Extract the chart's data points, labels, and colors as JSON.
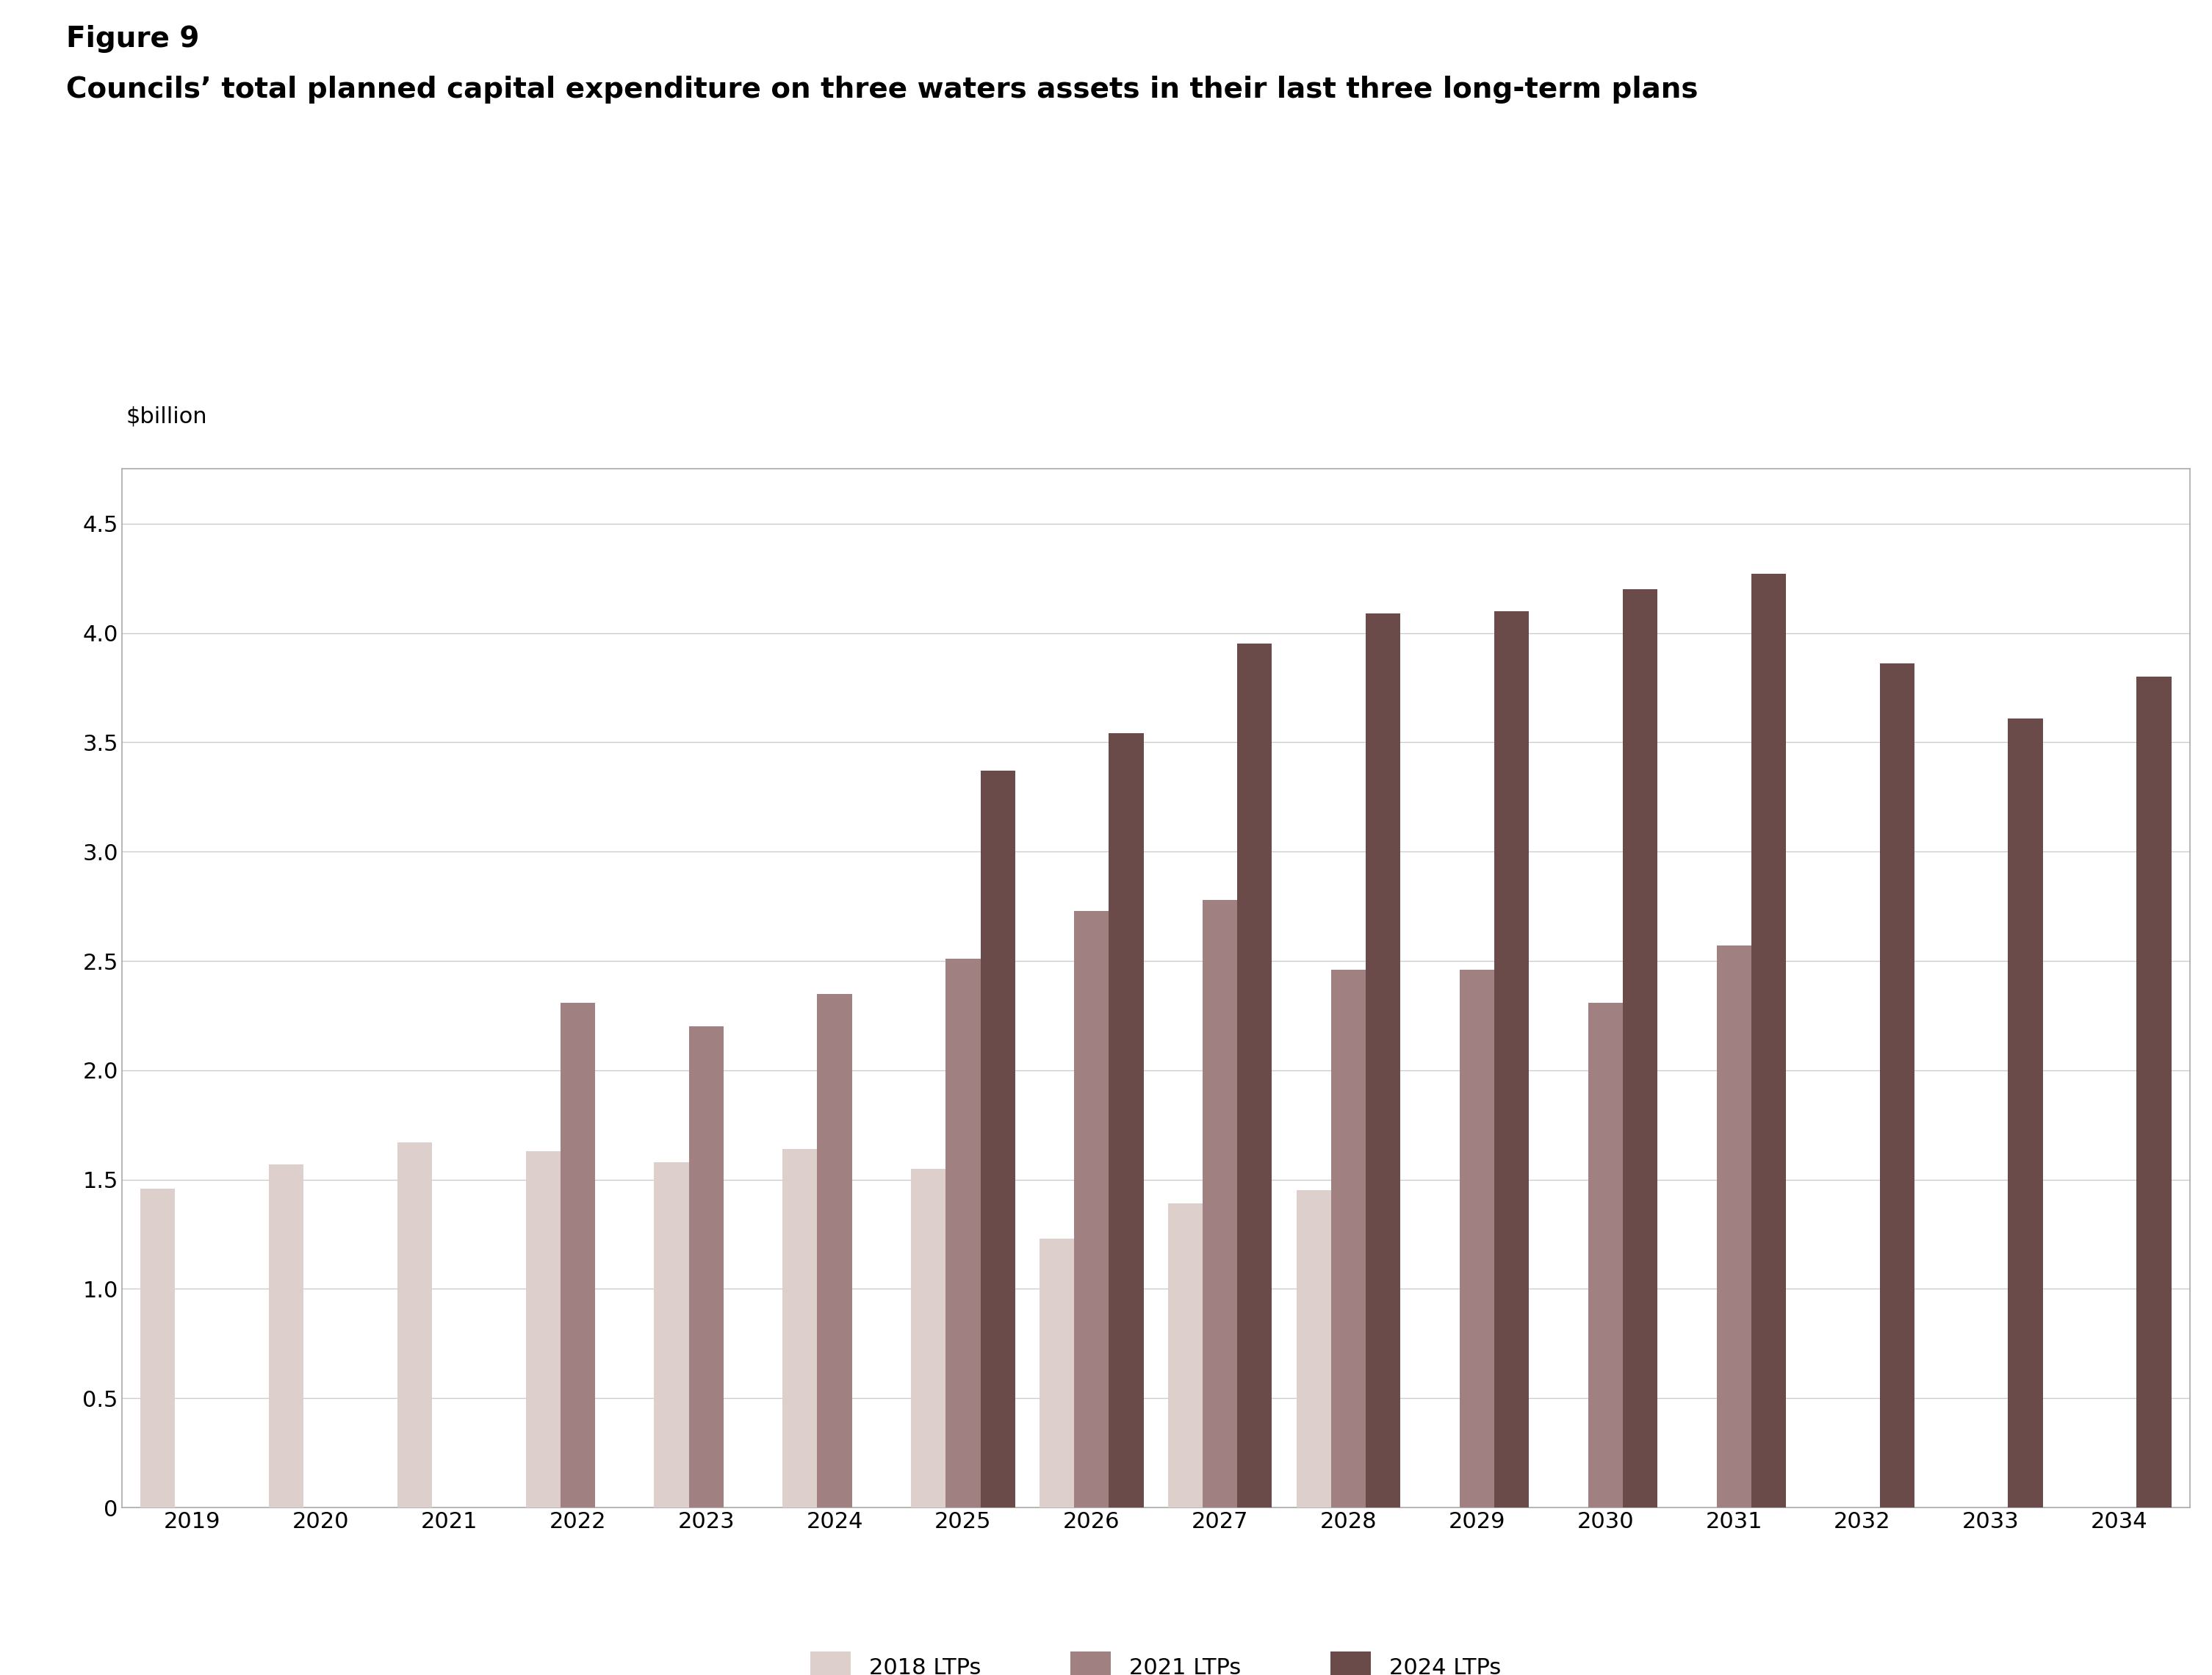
{
  "title_line1": "Figure 9",
  "title_line2": "Councils’ total planned capital expenditure on three waters assets in their last three long-term plans",
  "ylabel": "$billion",
  "years": [
    2019,
    2020,
    2021,
    2022,
    2023,
    2024,
    2025,
    2026,
    2027,
    2028,
    2029,
    2030,
    2031,
    2032,
    2033,
    2034
  ],
  "series": {
    "2018 LTPs": {
      "color": "#ddd0cc",
      "values": [
        1.46,
        1.57,
        1.67,
        1.63,
        1.58,
        1.64,
        1.55,
        1.23,
        1.39,
        1.45,
        null,
        null,
        null,
        null,
        null,
        null
      ]
    },
    "2021 LTPs": {
      "color": "#a08080",
      "values": [
        null,
        null,
        null,
        2.31,
        2.2,
        2.35,
        2.51,
        2.73,
        2.78,
        2.46,
        2.46,
        2.31,
        2.57,
        null,
        null,
        null
      ]
    },
    "2024 LTPs": {
      "color": "#6b4a4a",
      "values": [
        null,
        null,
        null,
        null,
        null,
        null,
        3.37,
        3.54,
        3.95,
        4.09,
        4.1,
        4.2,
        4.27,
        3.86,
        3.61,
        3.8
      ]
    }
  },
  "ylim": [
    0,
    4.75
  ],
  "yticks": [
    0,
    0.5,
    1.0,
    1.5,
    2.0,
    2.5,
    3.0,
    3.5,
    4.0,
    4.5
  ],
  "bar_width": 0.27,
  "background_color": "#ffffff",
  "chart_bg": "#ffffff",
  "grid_color": "#cccccc",
  "title_fontsize": 28,
  "subtitle_fontsize": 28,
  "axis_label_fontsize": 22,
  "tick_fontsize": 22,
  "legend_fontsize": 22
}
